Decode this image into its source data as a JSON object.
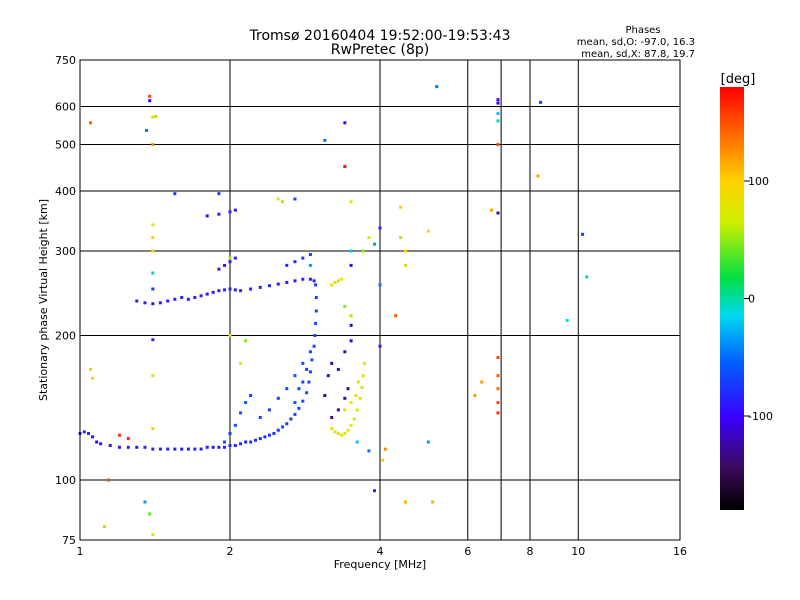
{
  "chart_data": {
    "type": "scatter",
    "title": "Tromsø 20160404 19:52:00-19:53:43",
    "subtitle": "RwPretec (8p)",
    "stats": {
      "heading": "Phases",
      "line1": "mean, sd,O: -97.0, 16.3",
      "line2": "mean, sd,X:  87.8, 19.7"
    },
    "xlabel": "Frequency [MHz]",
    "ylabel": "Stationary phase Virtual Height [km]",
    "x_scale": "log",
    "y_scale": "log",
    "xlim": [
      1,
      16
    ],
    "ylim": [
      75,
      750
    ],
    "x_ticks": [
      1,
      2,
      4,
      6,
      8,
      10,
      16
    ],
    "y_ticks": [
      75,
      100,
      200,
      300,
      400,
      500,
      600,
      750
    ],
    "x_gridlines": [
      2,
      4,
      6,
      7,
      8,
      10
    ],
    "y_gridlines": [
      100,
      200,
      300,
      400,
      500,
      600
    ],
    "grid": true,
    "colorbar": {
      "label": "[deg]",
      "min": -180,
      "max": 180,
      "ticks": [
        100,
        0,
        -100
      ]
    },
    "series": [
      {
        "color_by": "phase_deg",
        "points": [
          [
            1.0,
            125,
            -105
          ],
          [
            1.02,
            126,
            -108
          ],
          [
            1.04,
            125,
            -110
          ],
          [
            1.06,
            123,
            -115
          ],
          [
            1.08,
            120,
            -118
          ],
          [
            1.1,
            119,
            -112
          ],
          [
            1.15,
            118,
            -110
          ],
          [
            1.2,
            117,
            -112
          ],
          [
            1.25,
            117,
            -110
          ],
          [
            1.3,
            117,
            -112
          ],
          [
            1.35,
            117,
            -111
          ],
          [
            1.4,
            116,
            -110
          ],
          [
            1.45,
            116,
            -112
          ],
          [
            1.5,
            116,
            -110
          ],
          [
            1.55,
            116,
            -111
          ],
          [
            1.6,
            116,
            -110
          ],
          [
            1.65,
            116,
            -112
          ],
          [
            1.7,
            116,
            -110
          ],
          [
            1.75,
            116,
            -110
          ],
          [
            1.8,
            117,
            -111
          ],
          [
            1.85,
            117,
            -110
          ],
          [
            1.9,
            117,
            -112
          ],
          [
            1.95,
            117,
            -110
          ],
          [
            2.0,
            118,
            -108
          ],
          [
            2.05,
            118,
            -110
          ],
          [
            2.1,
            119,
            -106
          ],
          [
            2.15,
            120,
            -108
          ],
          [
            2.2,
            120,
            -104
          ],
          [
            2.25,
            121,
            -106
          ],
          [
            2.3,
            122,
            -104
          ],
          [
            2.35,
            123,
            -106
          ],
          [
            2.4,
            124,
            -104
          ],
          [
            2.45,
            125,
            -102
          ],
          [
            2.5,
            127,
            -104
          ],
          [
            2.55,
            129,
            -100
          ],
          [
            2.6,
            131,
            -102
          ],
          [
            2.65,
            134,
            -100
          ],
          [
            2.7,
            137,
            -98
          ],
          [
            2.75,
            141,
            -100
          ],
          [
            2.8,
            146,
            -96
          ],
          [
            2.85,
            152,
            -98
          ],
          [
            2.88,
            160,
            -96
          ],
          [
            2.9,
            168,
            -98
          ],
          [
            2.92,
            178,
            -96
          ],
          [
            2.95,
            190,
            -98
          ],
          [
            2.96,
            200,
            -96
          ],
          [
            2.97,
            212,
            -98
          ],
          [
            2.98,
            225,
            -96
          ],
          [
            2.98,
            240,
            -100
          ],
          [
            2.97,
            255,
            -102
          ],
          [
            1.95,
            120,
            -100
          ],
          [
            2.0,
            125,
            -98
          ],
          [
            2.05,
            130,
            -96
          ],
          [
            2.1,
            138,
            -94
          ],
          [
            2.15,
            145,
            -92
          ],
          [
            2.2,
            150,
            -96
          ],
          [
            2.3,
            135,
            -98
          ],
          [
            2.4,
            140,
            -100
          ],
          [
            2.5,
            148,
            -98
          ],
          [
            2.6,
            155,
            -96
          ],
          [
            2.7,
            165,
            -98
          ],
          [
            2.8,
            175,
            -96
          ],
          [
            2.7,
            145,
            -94
          ],
          [
            2.75,
            155,
            -96
          ],
          [
            2.8,
            160,
            -98
          ],
          [
            2.85,
            170,
            -100
          ],
          [
            2.9,
            185,
            -96
          ],
          [
            1.3,
            236,
            -110
          ],
          [
            1.35,
            234,
            -112
          ],
          [
            1.4,
            233,
            -114
          ],
          [
            1.45,
            234,
            -110
          ],
          [
            1.5,
            236,
            -112
          ],
          [
            1.55,
            238,
            -110
          ],
          [
            1.6,
            240,
            -112
          ],
          [
            1.65,
            238,
            -110
          ],
          [
            1.7,
            240,
            -112
          ],
          [
            1.75,
            242,
            -110
          ],
          [
            1.8,
            244,
            -112
          ],
          [
            1.85,
            246,
            -110
          ],
          [
            1.9,
            248,
            -112
          ],
          [
            1.95,
            249,
            -110
          ],
          [
            2.0,
            250,
            -112
          ],
          [
            2.05,
            249,
            -110
          ],
          [
            2.1,
            248,
            -112
          ],
          [
            2.2,
            250,
            -110
          ],
          [
            2.3,
            252,
            -112
          ],
          [
            2.4,
            254,
            -110
          ],
          [
            2.5,
            256,
            -112
          ],
          [
            2.6,
            258,
            -110
          ],
          [
            2.7,
            260,
            -112
          ],
          [
            2.8,
            262,
            -110
          ],
          [
            2.9,
            262,
            -112
          ],
          [
            2.95,
            260,
            -110
          ],
          [
            1.95,
            280,
            -115
          ],
          [
            2.0,
            285,
            -112
          ],
          [
            2.05,
            290,
            -110
          ],
          [
            1.9,
            275,
            -112
          ],
          [
            2.6,
            280,
            -106
          ],
          [
            2.7,
            285,
            -104
          ],
          [
            2.8,
            290,
            -102
          ],
          [
            2.9,
            295,
            -100
          ],
          [
            1.8,
            355,
            -115
          ],
          [
            1.9,
            358,
            -112
          ],
          [
            2.0,
            362,
            -110
          ],
          [
            2.05,
            365,
            -112
          ],
          [
            3.2,
            128,
            60
          ],
          [
            3.25,
            126,
            62
          ],
          [
            3.3,
            125,
            58
          ],
          [
            3.35,
            124,
            64
          ],
          [
            3.4,
            125,
            60
          ],
          [
            3.45,
            127,
            62
          ],
          [
            3.5,
            130,
            64
          ],
          [
            3.55,
            134,
            60
          ],
          [
            3.6,
            140,
            62
          ],
          [
            3.65,
            148,
            66
          ],
          [
            3.68,
            156,
            64
          ],
          [
            3.7,
            165,
            62
          ],
          [
            3.72,
            175,
            60
          ],
          [
            3.58,
            150,
            70
          ],
          [
            3.62,
            160,
            68
          ],
          [
            3.4,
            140,
            80
          ],
          [
            3.5,
            145,
            70
          ],
          [
            3.2,
            255,
            70
          ],
          [
            3.25,
            258,
            72
          ],
          [
            3.3,
            260,
            74
          ],
          [
            3.35,
            262,
            70
          ],
          [
            3.2,
            135,
            -140
          ],
          [
            3.3,
            140,
            -138
          ],
          [
            3.4,
            148,
            -135
          ],
          [
            3.45,
            155,
            -140
          ],
          [
            3.1,
            150,
            -138
          ],
          [
            3.15,
            165,
            -130
          ],
          [
            3.2,
            175,
            -135
          ],
          [
            3.3,
            170,
            -130
          ],
          [
            3.4,
            185,
            -128
          ],
          [
            3.5,
            195,
            -125
          ],
          [
            3.5,
            210,
            -130
          ],
          [
            1.38,
            630,
            150
          ],
          [
            1.38,
            617,
            -120
          ],
          [
            1.36,
            535,
            -80
          ],
          [
            1.4,
            570,
            60
          ],
          [
            1.42,
            572,
            40
          ],
          [
            1.4,
            500,
            120
          ],
          [
            1.4,
            340,
            50
          ],
          [
            1.4,
            320,
            90
          ],
          [
            1.4,
            300,
            80
          ],
          [
            1.4,
            270,
            -40
          ],
          [
            1.4,
            250,
            -100
          ],
          [
            1.4,
            196,
            -110
          ],
          [
            1.4,
            165,
            60
          ],
          [
            1.4,
            128,
            90
          ],
          [
            1.38,
            85,
            20
          ],
          [
            1.4,
            77,
            60
          ],
          [
            1.35,
            90,
            -60
          ],
          [
            1.12,
            80,
            40
          ],
          [
            1.14,
            100,
            150
          ],
          [
            1.05,
            555,
            140
          ],
          [
            1.05,
            170,
            80
          ],
          [
            1.06,
            163,
            90
          ],
          [
            1.2,
            124,
            160
          ],
          [
            1.25,
            122,
            160
          ],
          [
            1.55,
            395,
            -100
          ],
          [
            1.9,
            395,
            -100
          ],
          [
            2.0,
            290,
            40
          ],
          [
            2.0,
            200,
            80
          ],
          [
            2.1,
            175,
            60
          ],
          [
            2.15,
            195,
            30
          ],
          [
            2.5,
            385,
            60
          ],
          [
            2.55,
            380,
            40
          ],
          [
            2.7,
            385,
            -100
          ],
          [
            2.9,
            280,
            -60
          ],
          [
            3.1,
            510,
            -80
          ],
          [
            3.4,
            555,
            -120
          ],
          [
            3.4,
            450,
            170
          ],
          [
            3.5,
            380,
            70
          ],
          [
            3.5,
            300,
            -40
          ],
          [
            3.5,
            280,
            -120
          ],
          [
            3.4,
            230,
            30
          ],
          [
            3.5,
            220,
            40
          ],
          [
            3.7,
            300,
            30
          ],
          [
            3.8,
            320,
            60
          ],
          [
            3.9,
            310,
            -60
          ],
          [
            4.0,
            335,
            -110
          ],
          [
            4.0,
            255,
            -80
          ],
          [
            4.0,
            190,
            -110
          ],
          [
            3.6,
            120,
            -40
          ],
          [
            3.8,
            115,
            -80
          ],
          [
            3.9,
            95,
            -110
          ],
          [
            4.05,
            110,
            90
          ],
          [
            4.1,
            116,
            120
          ],
          [
            4.4,
            320,
            40
          ],
          [
            4.5,
            300,
            80
          ],
          [
            4.5,
            280,
            60
          ],
          [
            4.3,
            220,
            140
          ],
          [
            4.4,
            370,
            90
          ],
          [
            4.5,
            90,
            100
          ],
          [
            5.0,
            330,
            90
          ],
          [
            5.0,
            120,
            -60
          ],
          [
            5.2,
            660,
            -80
          ],
          [
            5.1,
            90,
            100
          ],
          [
            6.2,
            150,
            110
          ],
          [
            6.4,
            160,
            110
          ],
          [
            6.7,
            365,
            110
          ],
          [
            6.9,
            620,
            -120
          ],
          [
            6.9,
            610,
            -130
          ],
          [
            6.9,
            580,
            -40
          ],
          [
            6.9,
            560,
            -20
          ],
          [
            6.9,
            500,
            150
          ],
          [
            6.9,
            180,
            150
          ],
          [
            6.9,
            165,
            140
          ],
          [
            6.9,
            155,
            130
          ],
          [
            6.9,
            145,
            150
          ],
          [
            6.9,
            138,
            160
          ],
          [
            6.9,
            360,
            -140
          ],
          [
            8.3,
            430,
            110
          ],
          [
            8.4,
            612,
            -100
          ],
          [
            9.5,
            215,
            -30
          ],
          [
            10.2,
            325,
            -100
          ],
          [
            10.4,
            265,
            -10
          ]
        ]
      }
    ]
  }
}
